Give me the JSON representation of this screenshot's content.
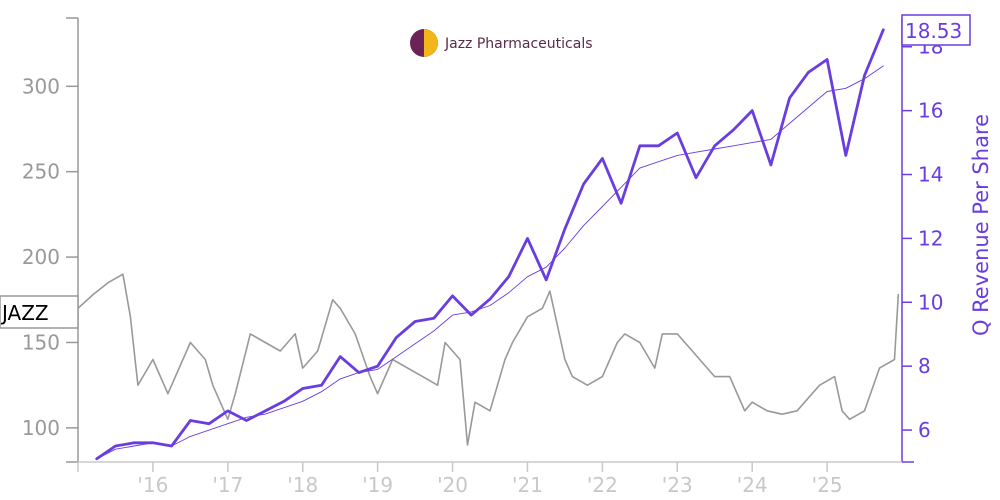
{
  "logo": {
    "text": "Jazz Pharmaceuticals",
    "colors": [
      "#6b2357",
      "#f2b51c"
    ]
  },
  "chart_data": {
    "type": "line",
    "ticker_label": "JAZZ",
    "last_value_label": "18.53",
    "colors": {
      "price": "#999999",
      "revenue": "#6a3de0",
      "right_axis": "#6a3de0",
      "left_axis": "#999999"
    },
    "x_tick_labels": [
      "'16",
      "'17",
      "'18",
      "'19",
      "'20",
      "'21",
      "'22",
      "'23",
      "'24",
      "'25"
    ],
    "x_tick_years": [
      2016,
      2017,
      2018,
      2019,
      2020,
      2021,
      2022,
      2023,
      2024,
      2025
    ],
    "xlim": [
      2015.0,
      2026.0
    ],
    "y_left": {
      "ticks": [
        100,
        150,
        200,
        250,
        300
      ],
      "lim": [
        80,
        340
      ]
    },
    "y_right": {
      "label": "Q Revenue Per Share",
      "ticks": [
        6,
        8,
        10,
        12,
        14,
        16,
        18
      ],
      "lim": [
        5.0,
        18.9
      ]
    },
    "series": [
      {
        "name": "JAZZ",
        "axis": "left",
        "x": [
          2015.0,
          2015.2,
          2015.4,
          2015.6,
          2015.7,
          2015.8,
          2016.0,
          2016.2,
          2016.3,
          2016.5,
          2016.7,
          2016.8,
          2017.0,
          2017.1,
          2017.3,
          2017.5,
          2017.7,
          2017.9,
          2018.0,
          2018.2,
          2018.4,
          2018.5,
          2018.7,
          2018.9,
          2019.0,
          2019.2,
          2019.4,
          2019.6,
          2019.8,
          2019.9,
          2020.1,
          2020.2,
          2020.3,
          2020.5,
          2020.7,
          2020.8,
          2021.0,
          2021.2,
          2021.3,
          2021.5,
          2021.6,
          2021.8,
          2022.0,
          2022.2,
          2022.3,
          2022.5,
          2022.7,
          2022.8,
          2023.0,
          2023.2,
          2023.4,
          2023.5,
          2023.7,
          2023.9,
          2024.0,
          2024.2,
          2024.4,
          2024.6,
          2024.8,
          2024.9,
          2025.1,
          2025.2,
          2025.3,
          2025.5,
          2025.7,
          2025.9,
          2025.95
        ],
        "values": [
          170,
          178,
          185,
          190,
          165,
          125,
          140,
          120,
          130,
          150,
          140,
          125,
          105,
          120,
          155,
          150,
          145,
          155,
          135,
          145,
          175,
          170,
          155,
          130,
          120,
          140,
          135,
          130,
          125,
          150,
          140,
          90,
          115,
          110,
          140,
          150,
          165,
          170,
          180,
          140,
          130,
          125,
          130,
          150,
          155,
          150,
          135,
          155,
          155,
          145,
          135,
          130,
          130,
          110,
          115,
          110,
          108,
          110,
          120,
          125,
          130,
          110,
          105,
          110,
          135,
          140,
          178
        ]
      },
      {
        "name": "Q Revenue Per Share",
        "axis": "right",
        "x": [
          2015.25,
          2015.5,
          2015.75,
          2016.0,
          2016.25,
          2016.5,
          2016.75,
          2017.0,
          2017.25,
          2017.5,
          2017.75,
          2018.0,
          2018.25,
          2018.5,
          2018.75,
          2019.0,
          2019.25,
          2019.5,
          2019.75,
          2020.0,
          2020.25,
          2020.5,
          2020.75,
          2021.0,
          2021.25,
          2021.5,
          2021.75,
          2022.0,
          2022.25,
          2022.5,
          2022.75,
          2023.0,
          2023.25,
          2023.5,
          2023.75,
          2024.0,
          2024.25,
          2024.5,
          2024.75,
          2025.0,
          2025.25,
          2025.5,
          2025.75
        ],
        "values": [
          5.1,
          5.5,
          5.6,
          5.6,
          5.5,
          6.3,
          6.2,
          6.6,
          6.3,
          6.6,
          6.9,
          7.3,
          7.4,
          8.3,
          7.8,
          8.0,
          8.9,
          9.4,
          9.5,
          10.2,
          9.6,
          10.1,
          10.8,
          12.0,
          10.7,
          12.3,
          13.7,
          14.5,
          13.1,
          14.9,
          14.9,
          15.3,
          13.9,
          14.9,
          15.4,
          16.0,
          14.3,
          16.4,
          17.2,
          17.6,
          14.6,
          17.1,
          18.53
        ]
      },
      {
        "name": "Trend",
        "axis": "right",
        "x": [
          2015.25,
          2015.5,
          2015.75,
          2016.0,
          2016.25,
          2016.5,
          2016.75,
          2017.0,
          2017.25,
          2017.5,
          2017.75,
          2018.0,
          2018.25,
          2018.5,
          2018.75,
          2019.0,
          2019.25,
          2019.5,
          2019.75,
          2020.0,
          2020.25,
          2020.5,
          2020.75,
          2021.0,
          2021.25,
          2021.5,
          2021.75,
          2022.0,
          2022.25,
          2022.5,
          2022.75,
          2023.0,
          2023.25,
          2023.5,
          2023.75,
          2024.0,
          2024.25,
          2024.5,
          2024.75,
          2025.0,
          2025.25,
          2025.5,
          2025.75
        ],
        "values": [
          5.1,
          5.4,
          5.5,
          5.6,
          5.5,
          5.8,
          6.0,
          6.2,
          6.4,
          6.5,
          6.7,
          6.9,
          7.2,
          7.6,
          7.8,
          7.9,
          8.3,
          8.7,
          9.1,
          9.6,
          9.7,
          9.9,
          10.3,
          10.8,
          11.1,
          11.7,
          12.4,
          13.0,
          13.6,
          14.2,
          14.4,
          14.6,
          14.7,
          14.8,
          14.9,
          15.0,
          15.1,
          15.6,
          16.1,
          16.6,
          16.7,
          17.0,
          17.4
        ]
      }
    ]
  }
}
